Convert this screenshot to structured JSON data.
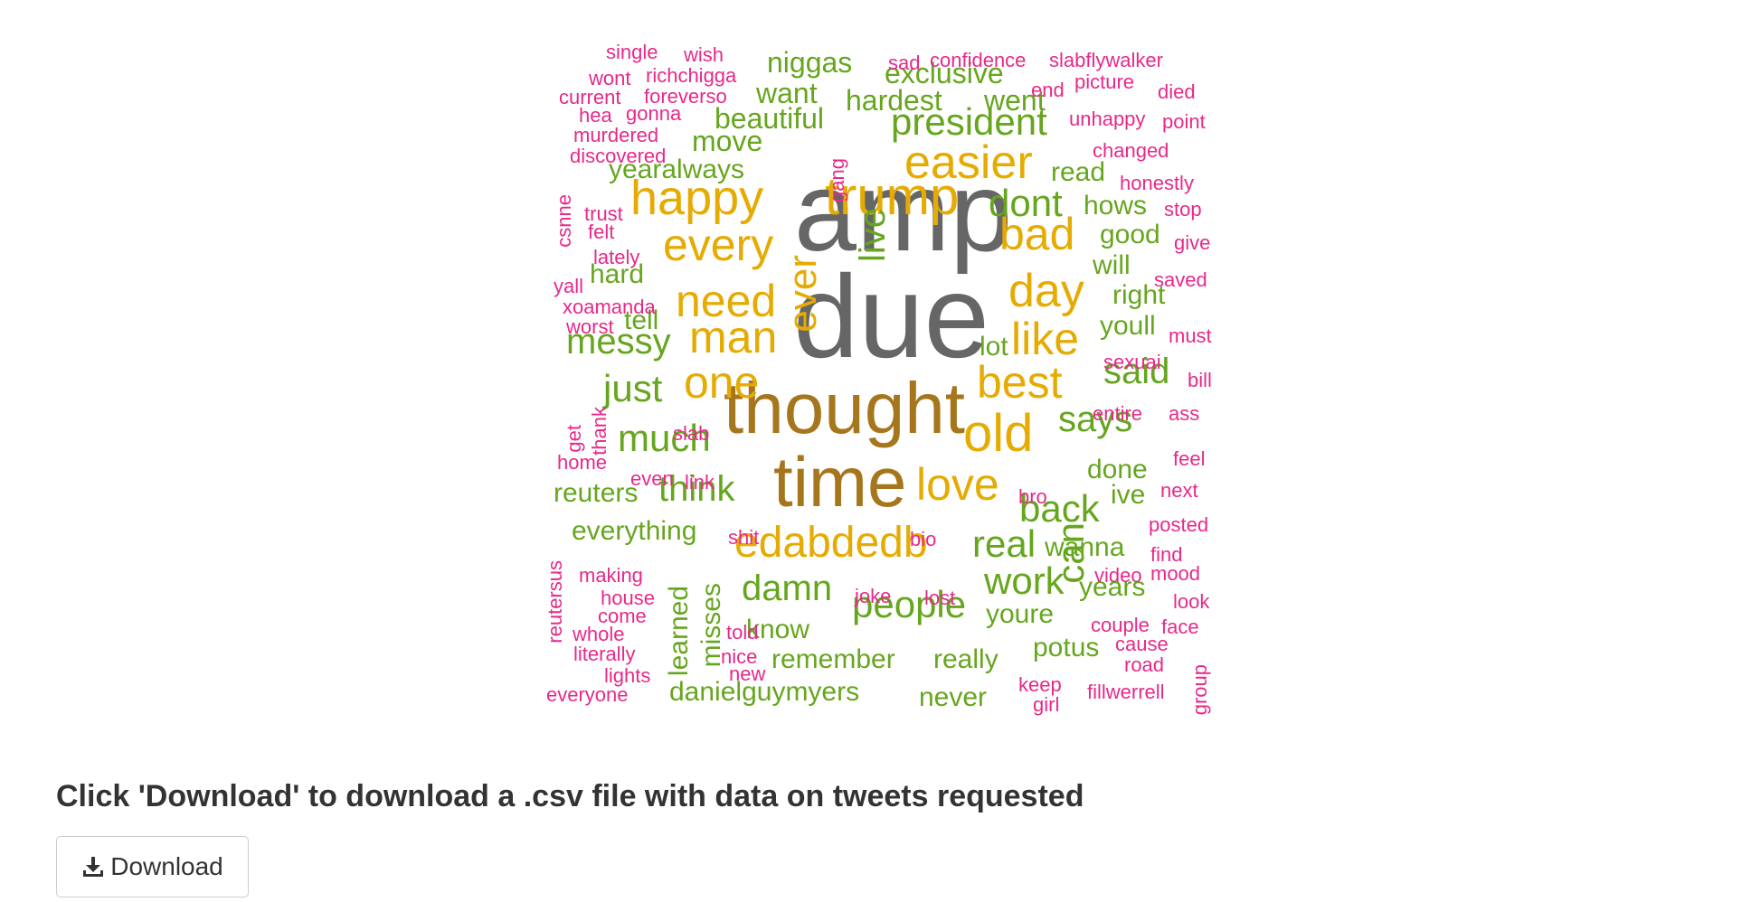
{
  "palette": {
    "gray": "#666666",
    "brown": "#A6761D",
    "gold": "#E6AB02",
    "green": "#66A61E",
    "pink": "#E7298A",
    "text_dark": "#333333",
    "border": "#cccccc"
  },
  "wordcloud": {
    "words": [
      {
        "text": "amp",
        "color": "gray",
        "weight": 100
      },
      {
        "text": "due",
        "color": "gray",
        "weight": 100
      },
      {
        "text": "thought",
        "color": "brown",
        "weight": 75
      },
      {
        "text": "time",
        "color": "brown",
        "weight": 75
      },
      {
        "text": "trump",
        "color": "gold",
        "weight": 55
      },
      {
        "text": "easier",
        "color": "gold",
        "weight": 50
      },
      {
        "text": "happy",
        "color": "gold",
        "weight": 50
      },
      {
        "text": "every",
        "color": "gold",
        "weight": 48
      },
      {
        "text": "need",
        "color": "gold",
        "weight": 48
      },
      {
        "text": "man",
        "color": "gold",
        "weight": 48
      },
      {
        "text": "one",
        "color": "gold",
        "weight": 48
      },
      {
        "text": "bad",
        "color": "gold",
        "weight": 48
      },
      {
        "text": "day",
        "color": "gold",
        "weight": 48
      },
      {
        "text": "like",
        "color": "gold",
        "weight": 48
      },
      {
        "text": "best",
        "color": "gold",
        "weight": 48
      },
      {
        "text": "old",
        "color": "gold",
        "weight": 55
      },
      {
        "text": "love",
        "color": "gold",
        "weight": 48
      },
      {
        "text": "edabdedb",
        "color": "gold",
        "weight": 48
      },
      {
        "text": "ever",
        "color": "gold",
        "weight": 45
      },
      {
        "text": "can",
        "color": "green",
        "weight": 42
      },
      {
        "text": "president",
        "color": "green",
        "weight": 42
      },
      {
        "text": "live",
        "color": "green",
        "weight": 40
      },
      {
        "text": "dont",
        "color": "green",
        "weight": 40
      },
      {
        "text": "much",
        "color": "green",
        "weight": 42
      },
      {
        "text": "think",
        "color": "green",
        "weight": 40
      },
      {
        "text": "just",
        "color": "green",
        "weight": 40
      },
      {
        "text": "messy",
        "color": "green",
        "weight": 38
      },
      {
        "text": "says",
        "color": "green",
        "weight": 40
      },
      {
        "text": "said",
        "color": "green",
        "weight": 38
      },
      {
        "text": "back",
        "color": "green",
        "weight": 40
      },
      {
        "text": "real",
        "color": "green",
        "weight": 40
      },
      {
        "text": "work",
        "color": "green",
        "weight": 40
      },
      {
        "text": "damn",
        "color": "green",
        "weight": 40
      },
      {
        "text": "people",
        "color": "green",
        "weight": 40
      },
      {
        "text": "niggas",
        "color": "green",
        "weight": 32
      },
      {
        "text": "want",
        "color": "green",
        "weight": 32
      },
      {
        "text": "hardest",
        "color": "green",
        "weight": 32
      },
      {
        "text": "went",
        "color": "green",
        "weight": 32
      },
      {
        "text": "exclusive",
        "color": "green",
        "weight": 30
      },
      {
        "text": "beautiful",
        "color": "green",
        "weight": 32
      },
      {
        "text": "move",
        "color": "green",
        "weight": 30
      },
      {
        "text": "yearalways",
        "color": "green",
        "weight": 30
      },
      {
        "text": "read",
        "color": "green",
        "weight": 30
      },
      {
        "text": "hows",
        "color": "green",
        "weight": 30
      },
      {
        "text": "good",
        "color": "green",
        "weight": 30
      },
      {
        "text": "will",
        "color": "green",
        "weight": 30
      },
      {
        "text": "right",
        "color": "green",
        "weight": 30
      },
      {
        "text": "youll",
        "color": "green",
        "weight": 30
      },
      {
        "text": "hard",
        "color": "green",
        "weight": 30
      },
      {
        "text": "tell",
        "color": "green",
        "weight": 30
      },
      {
        "text": "lot",
        "color": "green",
        "weight": 30
      },
      {
        "text": "reuters",
        "color": "green",
        "weight": 30
      },
      {
        "text": "everything",
        "color": "green",
        "weight": 30
      },
      {
        "text": "done",
        "color": "green",
        "weight": 30
      },
      {
        "text": "ive",
        "color": "green",
        "weight": 30
      },
      {
        "text": "wanna",
        "color": "green",
        "weight": 30
      },
      {
        "text": "years",
        "color": "green",
        "weight": 30
      },
      {
        "text": "youre",
        "color": "green",
        "weight": 30
      },
      {
        "text": "know",
        "color": "green",
        "weight": 30
      },
      {
        "text": "remember",
        "color": "green",
        "weight": 30
      },
      {
        "text": "really",
        "color": "green",
        "weight": 30
      },
      {
        "text": "potus",
        "color": "green",
        "weight": 30
      },
      {
        "text": "danielguymyers",
        "color": "green",
        "weight": 30
      },
      {
        "text": "never",
        "color": "green",
        "weight": 30
      },
      {
        "text": "learned",
        "color": "green",
        "weight": 30
      },
      {
        "text": "misses",
        "color": "green",
        "weight": 30
      },
      {
        "text": "single",
        "color": "pink",
        "weight": 22
      },
      {
        "text": "wish",
        "color": "pink",
        "weight": 22
      },
      {
        "text": "sad",
        "color": "pink",
        "weight": 22
      },
      {
        "text": "confidence",
        "color": "pink",
        "weight": 22
      },
      {
        "text": "slabflywalker",
        "color": "pink",
        "weight": 22
      },
      {
        "text": "wont",
        "color": "pink",
        "weight": 22
      },
      {
        "text": "richchigga",
        "color": "pink",
        "weight": 22
      },
      {
        "text": "current",
        "color": "pink",
        "weight": 22
      },
      {
        "text": "foreverso",
        "color": "pink",
        "weight": 22
      },
      {
        "text": "end",
        "color": "pink",
        "weight": 22
      },
      {
        "text": "picture",
        "color": "pink",
        "weight": 22
      },
      {
        "text": "died",
        "color": "pink",
        "weight": 22
      },
      {
        "text": "hea",
        "color": "pink",
        "weight": 22
      },
      {
        "text": "gonna",
        "color": "pink",
        "weight": 22
      },
      {
        "text": "unhappy",
        "color": "pink",
        "weight": 22
      },
      {
        "text": "point",
        "color": "pink",
        "weight": 22
      },
      {
        "text": "murdered",
        "color": "pink",
        "weight": 22
      },
      {
        "text": "changed",
        "color": "pink",
        "weight": 22
      },
      {
        "text": "discovered",
        "color": "pink",
        "weight": 22
      },
      {
        "text": "gang",
        "color": "pink",
        "weight": 22
      },
      {
        "text": "honestly",
        "color": "pink",
        "weight": 22
      },
      {
        "text": "csnne",
        "color": "pink",
        "weight": 22
      },
      {
        "text": "trust",
        "color": "pink",
        "weight": 22
      },
      {
        "text": "felt",
        "color": "pink",
        "weight": 22
      },
      {
        "text": "stop",
        "color": "pink",
        "weight": 22
      },
      {
        "text": "give",
        "color": "pink",
        "weight": 22
      },
      {
        "text": "lately",
        "color": "pink",
        "weight": 22
      },
      {
        "text": "yall",
        "color": "pink",
        "weight": 22
      },
      {
        "text": "saved",
        "color": "pink",
        "weight": 22
      },
      {
        "text": "xoamanda",
        "color": "pink",
        "weight": 22
      },
      {
        "text": "worst",
        "color": "pink",
        "weight": 22
      },
      {
        "text": "must",
        "color": "pink",
        "weight": 22
      },
      {
        "text": "sexuai",
        "color": "pink",
        "weight": 22
      },
      {
        "text": "bill",
        "color": "pink",
        "weight": 22
      },
      {
        "text": "get",
        "color": "pink",
        "weight": 22
      },
      {
        "text": "thank",
        "color": "pink",
        "weight": 22
      },
      {
        "text": "entire",
        "color": "pink",
        "weight": 22
      },
      {
        "text": "ass",
        "color": "pink",
        "weight": 22
      },
      {
        "text": "slab",
        "color": "pink",
        "weight": 22
      },
      {
        "text": "home",
        "color": "pink",
        "weight": 22
      },
      {
        "text": "feel",
        "color": "pink",
        "weight": 22
      },
      {
        "text": "even",
        "color": "pink",
        "weight": 22
      },
      {
        "text": "link",
        "color": "pink",
        "weight": 22
      },
      {
        "text": "next",
        "color": "pink",
        "weight": 22
      },
      {
        "text": "bro",
        "color": "pink",
        "weight": 22
      },
      {
        "text": "posted",
        "color": "pink",
        "weight": 22
      },
      {
        "text": "shit",
        "color": "pink",
        "weight": 22
      },
      {
        "text": "bio",
        "color": "pink",
        "weight": 22
      },
      {
        "text": "reutersus",
        "color": "pink",
        "weight": 22
      },
      {
        "text": "find",
        "color": "pink",
        "weight": 22
      },
      {
        "text": "making",
        "color": "pink",
        "weight": 22
      },
      {
        "text": "video",
        "color": "pink",
        "weight": 22
      },
      {
        "text": "mood",
        "color": "pink",
        "weight": 22
      },
      {
        "text": "house",
        "color": "pink",
        "weight": 22
      },
      {
        "text": "joke",
        "color": "pink",
        "weight": 22
      },
      {
        "text": "lost",
        "color": "pink",
        "weight": 22
      },
      {
        "text": "come",
        "color": "pink",
        "weight": 22
      },
      {
        "text": "look",
        "color": "pink",
        "weight": 22
      },
      {
        "text": "whole",
        "color": "pink",
        "weight": 22
      },
      {
        "text": "told",
        "color": "pink",
        "weight": 22
      },
      {
        "text": "couple",
        "color": "pink",
        "weight": 22
      },
      {
        "text": "face",
        "color": "pink",
        "weight": 22
      },
      {
        "text": "literally",
        "color": "pink",
        "weight": 22
      },
      {
        "text": "cause",
        "color": "pink",
        "weight": 22
      },
      {
        "text": "nice",
        "color": "pink",
        "weight": 22
      },
      {
        "text": "lights",
        "color": "pink",
        "weight": 22
      },
      {
        "text": "new",
        "color": "pink",
        "weight": 22
      },
      {
        "text": "road",
        "color": "pink",
        "weight": 22
      },
      {
        "text": "group",
        "color": "pink",
        "weight": 22
      },
      {
        "text": "keep",
        "color": "pink",
        "weight": 22
      },
      {
        "text": "everyone",
        "color": "pink",
        "weight": 22
      },
      {
        "text": "fillwerrell",
        "color": "pink",
        "weight": 22
      },
      {
        "text": "girl",
        "color": "pink",
        "weight": 22
      }
    ]
  },
  "download_section": {
    "heading": "Click 'Download' to download a .csv file with data on tweets requested",
    "button_label": "Download",
    "button_icon": "download-icon"
  }
}
